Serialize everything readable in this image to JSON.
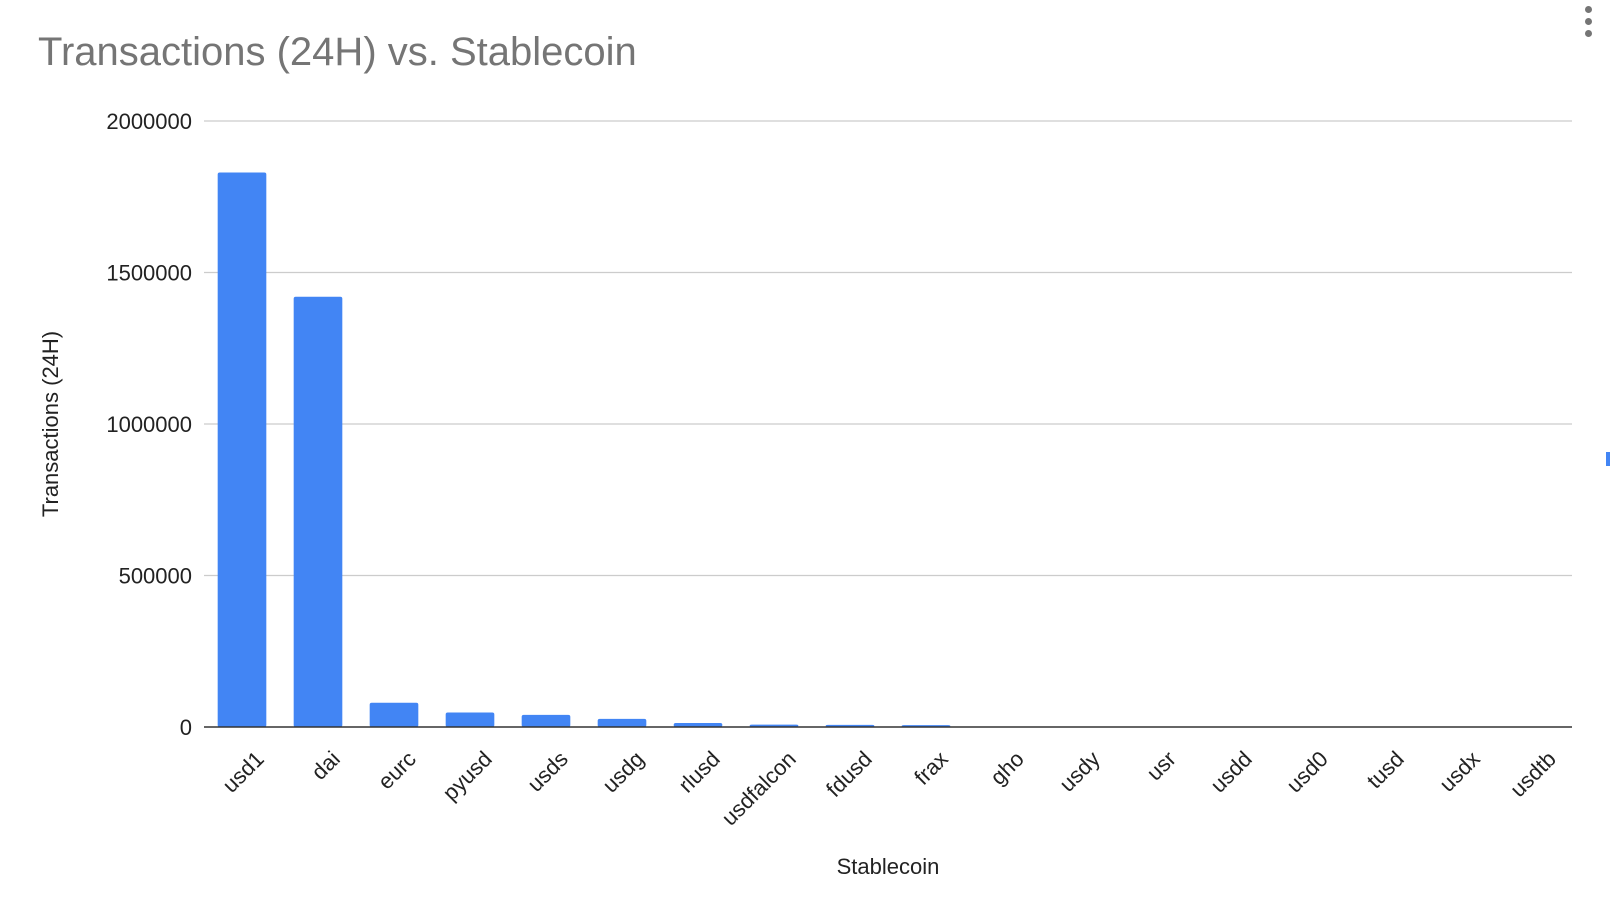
{
  "chart_data": {
    "type": "bar",
    "title": "Transactions (24H) vs. Stablecoin",
    "xlabel": "Stablecoin",
    "ylabel": "Transactions (24H)",
    "ylim": [
      0,
      2000000
    ],
    "yticks": [
      "0",
      "500000",
      "1000000",
      "1500000",
      "2000000"
    ],
    "ytick_values": [
      0,
      500000,
      1000000,
      1500000,
      2000000
    ],
    "grid": true,
    "legend": "none",
    "bar_color": "#4285f4",
    "categories": [
      "usd1",
      "dai",
      "eurc",
      "pyusd",
      "usds",
      "usdg",
      "rlusd",
      "usdfalcon",
      "fdusd",
      "frax",
      "gho",
      "usdy",
      "usr",
      "usdd",
      "usd0",
      "tusd",
      "usdx",
      "usdtb"
    ],
    "values": [
      1830000,
      1420000,
      80000,
      48000,
      40000,
      27000,
      13000,
      8000,
      7000,
      6000,
      1000,
      800,
      600,
      500,
      400,
      300,
      200,
      100
    ]
  },
  "colors": {
    "title": "#757575",
    "text": "#222222",
    "grid": "#cccccc",
    "axis": "#333333",
    "accent": "#4285f4"
  },
  "icons": {
    "menu": "more-vert-icon"
  }
}
